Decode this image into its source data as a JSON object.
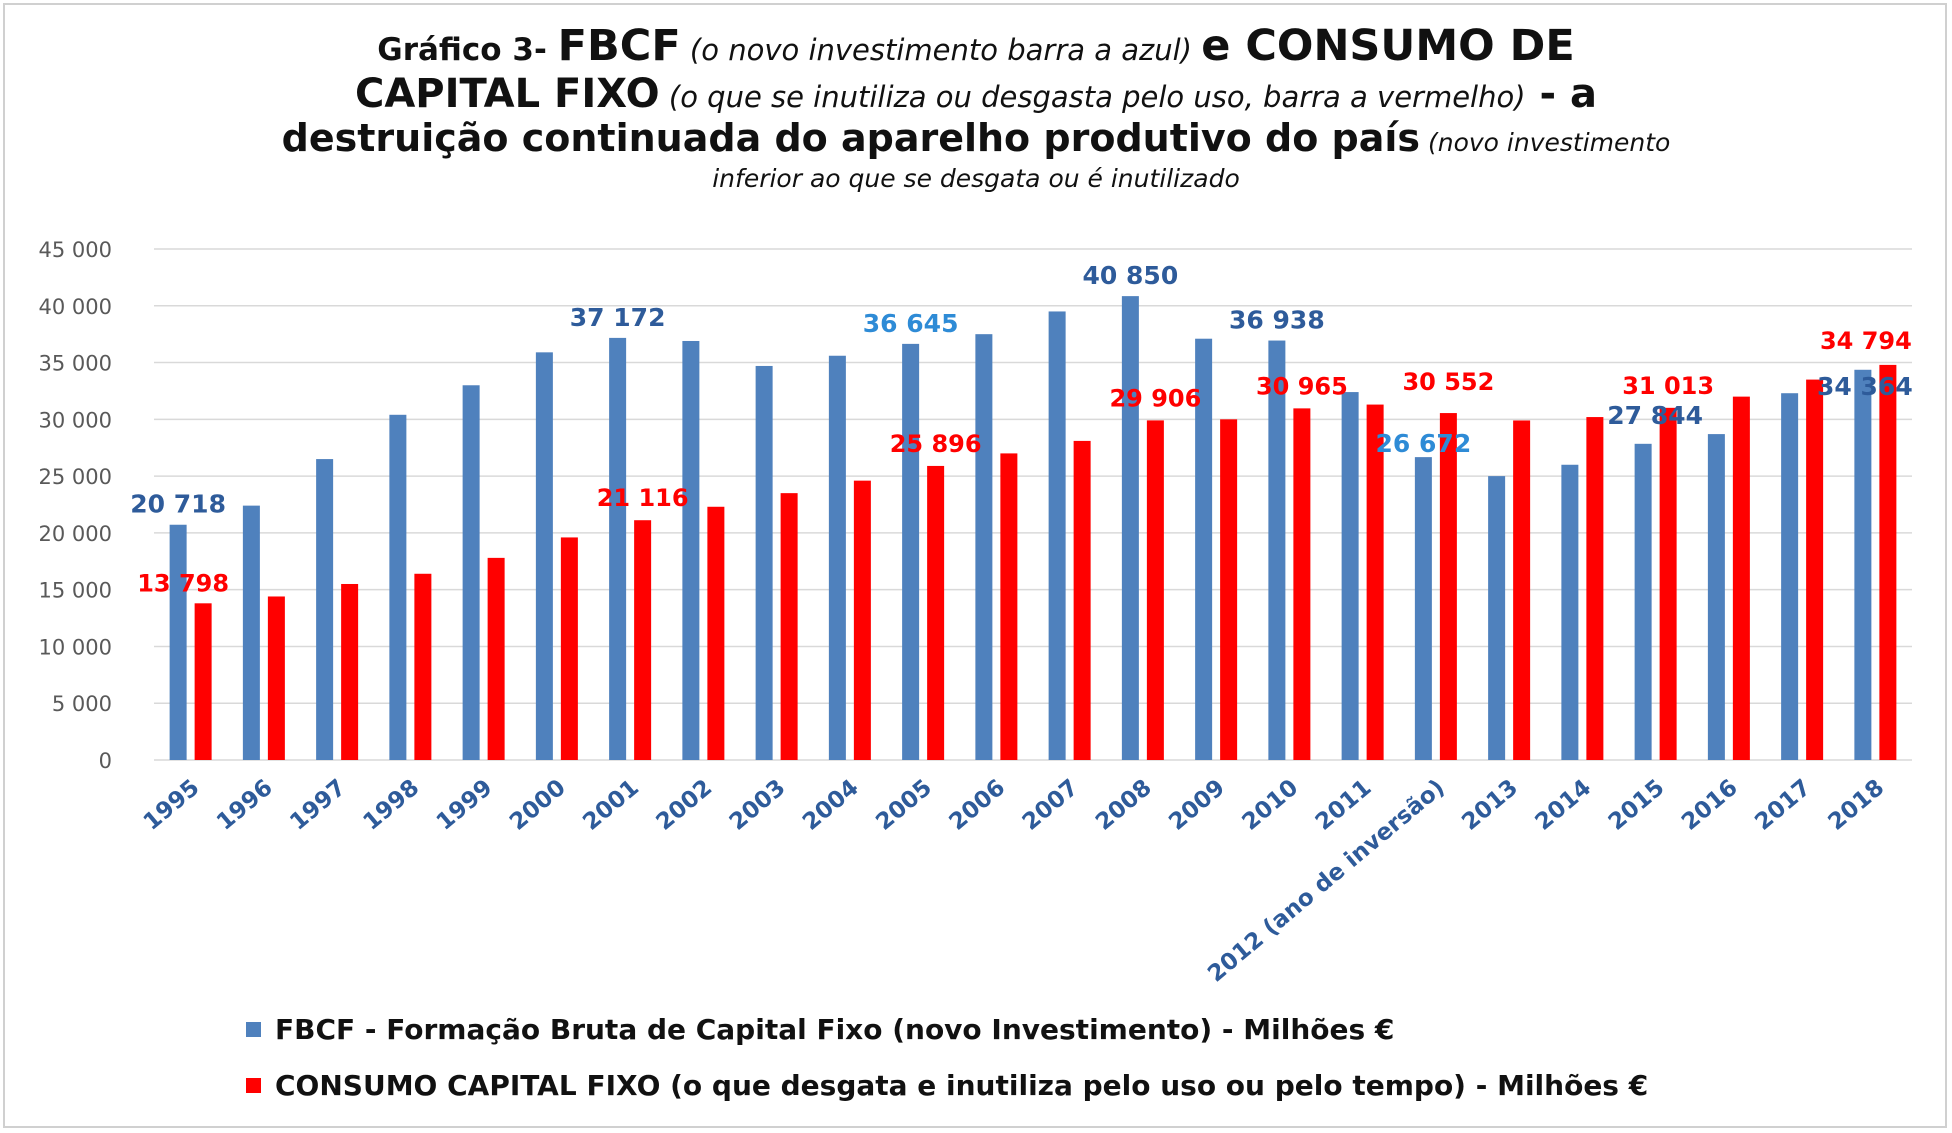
{
  "title": {
    "part1": "Gráfico 3- ",
    "part2": "FBCF",
    "part3": " (o novo investimento barra a azul) ",
    "part4": "e CONSUMO DE",
    "part5": "CAPITAL FIXO",
    "part6": " (o que se inutiliza ou desgasta pelo uso, barra a vermelho)",
    "part7": " - a",
    "part8": "destruição continuada do aparelho produtivo do país",
    "part9": " (novo investimento",
    "part10": "inferior ao que se desgata ou é inutilizado"
  },
  "colors": {
    "fbcf": "#4f81bd",
    "consumo": "#ff0000",
    "grid": "#d9d9d9",
    "axis_text": "#595959",
    "x_label": "#2e5b9a"
  },
  "chart_data": {
    "type": "bar",
    "ylim": [
      0,
      45000
    ],
    "yticks": [
      "0",
      "5 000",
      "10 000",
      "15 000",
      "20 000",
      "25 000",
      "30 000",
      "35 000",
      "40 000",
      "45 000"
    ],
    "ytick_values": [
      0,
      5000,
      10000,
      15000,
      20000,
      25000,
      30000,
      35000,
      40000,
      45000
    ],
    "grid": true,
    "legend_placement": "bottom-left",
    "categories": [
      "1995",
      "1996",
      "1997",
      "1998",
      "1999",
      "2000",
      "2001",
      "2002",
      "2003",
      "2004",
      "2005",
      "2006",
      "2007",
      "2008",
      "2009",
      "2010",
      "2011",
      "2012 (ano de inversão)",
      "2013",
      "2014",
      "2015",
      "2016",
      "2017",
      "2018"
    ],
    "series": [
      {
        "name": "FBCF - Formação Bruta de Capital Fixo (novo Investimento)  - Milhões €",
        "values": [
          20718,
          22400,
          26500,
          30400,
          33000,
          35900,
          37172,
          36900,
          34700,
          35600,
          36645,
          37500,
          39500,
          40850,
          37100,
          36938,
          32400,
          26672,
          25000,
          26000,
          27844,
          28700,
          32300,
          34364
        ],
        "labels": {
          "0": "20 718",
          "6": "37 172",
          "10": "36 645",
          "13": "40 850",
          "15": "36 938",
          "17": "26 672",
          "20": "27 844",
          "23": "34 364"
        }
      },
      {
        "name": "CONSUMO CAPITAL FIXO (o que desgata e inutiliza pelo uso ou pelo tempo) - Milhões €",
        "values": [
          13798,
          14400,
          15500,
          16400,
          17800,
          19600,
          21116,
          22300,
          23500,
          24600,
          25896,
          27000,
          28100,
          29906,
          30000,
          30965,
          31300,
          30552,
          29900,
          30200,
          31013,
          32000,
          33500,
          34794
        ],
        "labels": {
          "0": "13 798",
          "6": "21 116",
          "10": "25 896",
          "13": "29 906",
          "15": "30 965",
          "17": "30 552",
          "20": "31 013",
          "23": "34 794"
        }
      }
    ]
  }
}
